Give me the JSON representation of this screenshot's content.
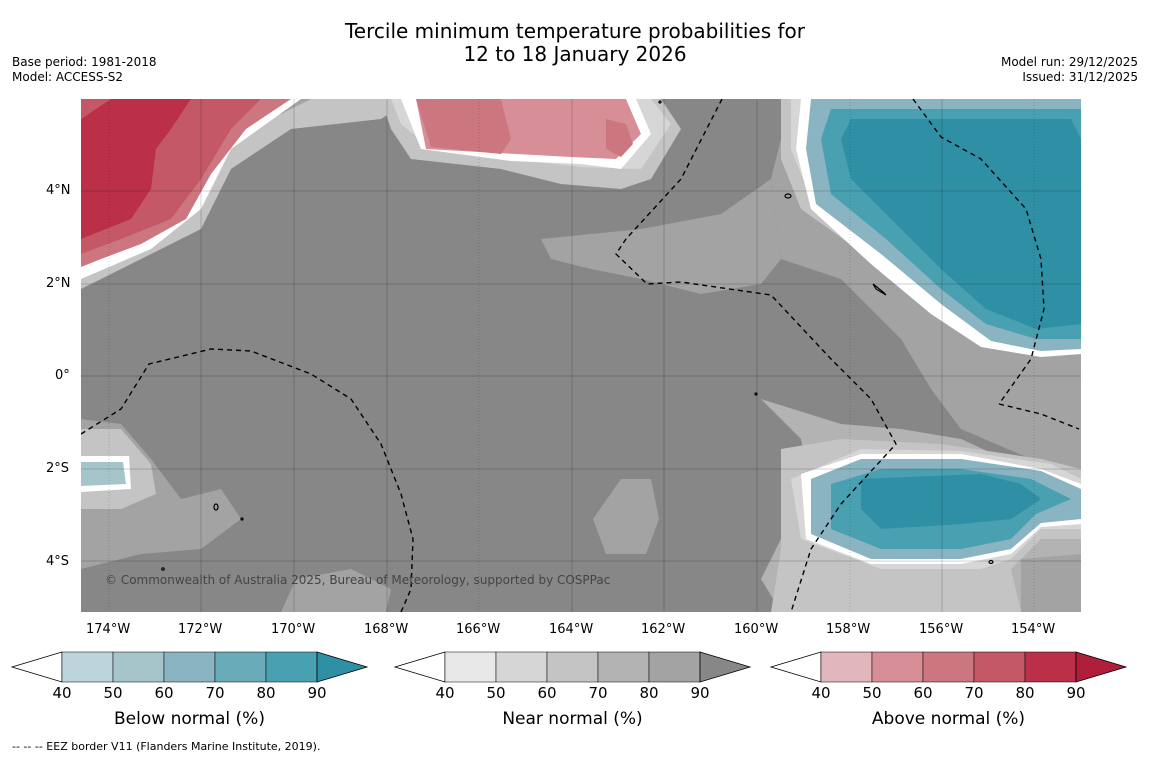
{
  "header": {
    "title_line1": "Tercile minimum temperature probabilities for",
    "title_line2": "12 to 18 January 2026",
    "base_period": "Base period: 1981-2018",
    "model": "Model: ACCESS-S2",
    "model_run": "Model run: 29/12/2025",
    "issued": "Issued: 31/12/2025"
  },
  "map": {
    "copyright": "© Commonwealth of Australia 2025, Bureau of Meteorology, supported by COSPPac",
    "lat_labels": [
      "4°N",
      "2°N",
      "0°",
      "2°S",
      "4°S"
    ],
    "lon_labels": [
      "174°W",
      "172°W",
      "170°W",
      "168°W",
      "166°W",
      "164°W",
      "162°W",
      "160°W",
      "158°W",
      "156°W",
      "154°W"
    ],
    "colors": {
      "near_normal_90": "#878787",
      "near_normal_80": "#a3a3a3",
      "near_normal_70": "#c4c4c4",
      "near_normal_60": "#d6d6d6",
      "white": "#ffffff"
    }
  },
  "colorbars": [
    {
      "title": "Below normal (%)",
      "ticks": [
        "40",
        "50",
        "60",
        "70",
        "80",
        "90"
      ],
      "colors": [
        "#ffffff",
        "#bcd5dc",
        "#a6c5cb",
        "#8ab4c1",
        "#6aabba",
        "#48a0b1",
        "#2f90a5"
      ]
    },
    {
      "title": "Near normal (%)",
      "ticks": [
        "40",
        "50",
        "60",
        "70",
        "80",
        "90"
      ],
      "colors": [
        "#ffffff",
        "#e8e8e8",
        "#d6d6d6",
        "#c4c4c4",
        "#b3b3b3",
        "#a3a3a3",
        "#878787"
      ]
    },
    {
      "title": "Above normal (%)",
      "ticks": [
        "40",
        "50",
        "60",
        "70",
        "80",
        "90"
      ],
      "colors": [
        "#ffffff",
        "#e1b6bc",
        "#d88e97",
        "#cc7780",
        "#c45866",
        "#bb3048",
        "#b01e3b"
      ]
    }
  ],
  "footer": {
    "legend_text": "--  --  -- EEZ border V11 (Flanders Marine Institute, 2019)."
  }
}
